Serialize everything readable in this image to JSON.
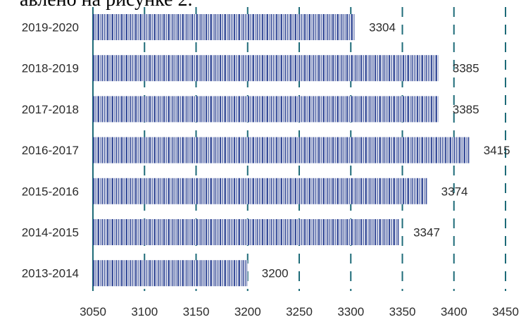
{
  "page_text": "авлено на рисунке 2.",
  "chart_data": {
    "type": "bar",
    "orientation": "horizontal",
    "categories": [
      "2019-2020",
      "2018-2019",
      "2017-2018",
      "2016-2017",
      "2015-2016",
      "2014-2015",
      "2013-2014"
    ],
    "values": [
      3304,
      3385,
      3385,
      3415,
      3374,
      3347,
      3200
    ],
    "data_labels": [
      "3304",
      "3385",
      "3385",
      "3415",
      "3374",
      "3347",
      "3200"
    ],
    "xlim": [
      3050,
      3450
    ],
    "xticks": [
      "3050",
      "3100",
      "3150",
      "3200",
      "3250",
      "3300",
      "3350",
      "3400",
      "3450"
    ],
    "grid": "vertical dashed",
    "colors": {
      "bar_stroke": "#3a4f9a",
      "bar_fill": "#ffffff",
      "grid": "#1e6b78",
      "axis": "#1e6b78"
    }
  }
}
